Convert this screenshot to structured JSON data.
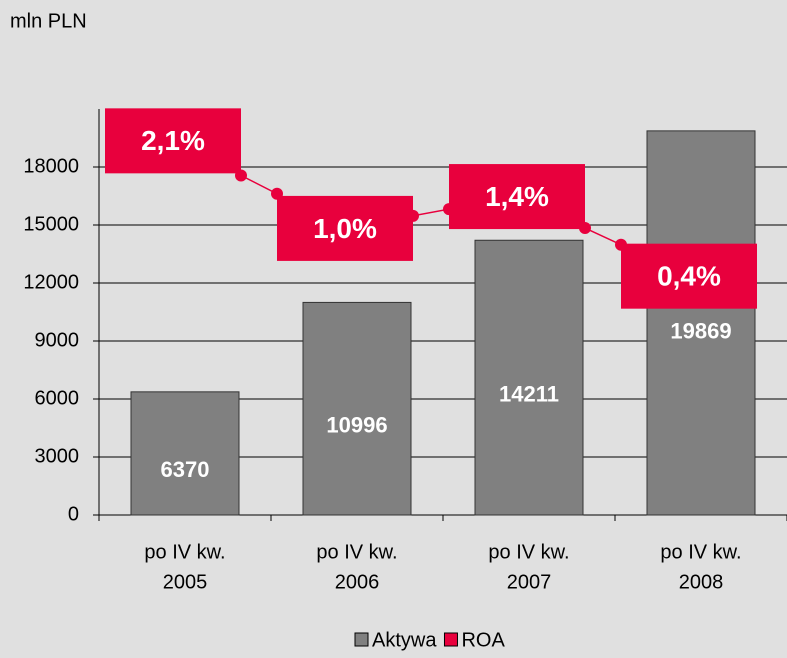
{
  "chart_data": {
    "type": "bar",
    "y_label": "mln PLN",
    "categories": [
      [
        "po IV kw.",
        "2005"
      ],
      [
        "po IV kw.",
        "2006"
      ],
      [
        "po IV kw.",
        "2007"
      ],
      [
        "po IV kw.",
        "2008"
      ]
    ],
    "series": [
      {
        "name": "Aktywa",
        "color": "#808080",
        "type": "bar",
        "values": [
          6370,
          10996,
          14211,
          19869
        ]
      },
      {
        "name": "ROA",
        "color": "#e8003d",
        "type": "line",
        "axis": "y2",
        "values": [
          2.1,
          1.0,
          1.4,
          0.4
        ],
        "value_labels": [
          "2,1%",
          "1,0%",
          "1,4%",
          "0,4%"
        ]
      }
    ],
    "ylim": [
      0,
      21000
    ],
    "yticks": [
      0,
      3000,
      6000,
      9000,
      12000,
      15000,
      18000
    ],
    "y2lim": [
      -2.6,
      2.5
    ],
    "grid": true,
    "legend": "bottom"
  }
}
